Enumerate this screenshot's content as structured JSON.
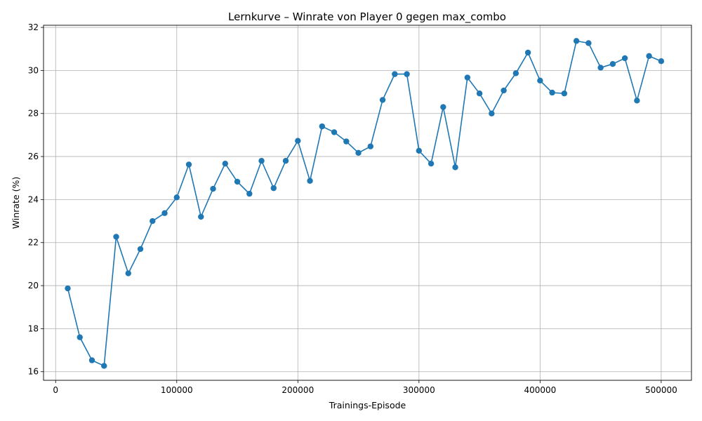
{
  "chart_data": {
    "type": "line",
    "title": "Lernkurve – Winrate von Player 0 gegen max_combo",
    "xlabel": "Trainings-Episode",
    "ylabel": "Winrate (%)",
    "xlim": [
      -10000,
      525000
    ],
    "ylim": [
      15.6,
      32.1
    ],
    "xticks": [
      0,
      100000,
      200000,
      300000,
      400000,
      500000
    ],
    "xtick_labels": [
      "0",
      "100000",
      "200000",
      "300000",
      "400000",
      "500000"
    ],
    "yticks": [
      16,
      18,
      20,
      22,
      24,
      26,
      28,
      30,
      32
    ],
    "ytick_labels": [
      "16",
      "18",
      "20",
      "22",
      "24",
      "26",
      "28",
      "30",
      "32"
    ],
    "grid": true,
    "color": "#1f77b4",
    "marker": "circle",
    "series": [
      {
        "x": [
          10000,
          20000,
          30000,
          40000,
          50000,
          60000,
          70000,
          80000,
          90000,
          100000,
          110000,
          120000,
          130000,
          140000,
          150000,
          160000,
          170000,
          180000,
          190000,
          200000,
          210000,
          220000,
          230000,
          240000,
          250000,
          260000,
          270000,
          280000,
          290000,
          300000,
          310000,
          320000,
          330000,
          340000,
          350000,
          360000,
          370000,
          380000,
          390000,
          400000,
          410000,
          420000,
          430000,
          440000,
          450000,
          460000,
          470000,
          480000,
          490000,
          500000
        ],
        "values": [
          19.87,
          17.6,
          16.53,
          16.27,
          22.27,
          20.57,
          21.7,
          23.0,
          23.37,
          24.1,
          25.63,
          23.2,
          24.5,
          25.67,
          24.83,
          24.27,
          25.8,
          24.53,
          25.8,
          26.73,
          24.87,
          27.4,
          27.13,
          26.7,
          26.17,
          26.47,
          28.63,
          29.83,
          29.83,
          26.27,
          25.67,
          28.3,
          25.5,
          29.67,
          28.93,
          28.0,
          29.07,
          29.87,
          30.83,
          29.53,
          28.97,
          28.93,
          31.37,
          31.27,
          30.13,
          30.3,
          30.57,
          28.6,
          30.67,
          30.43
        ]
      }
    ]
  }
}
